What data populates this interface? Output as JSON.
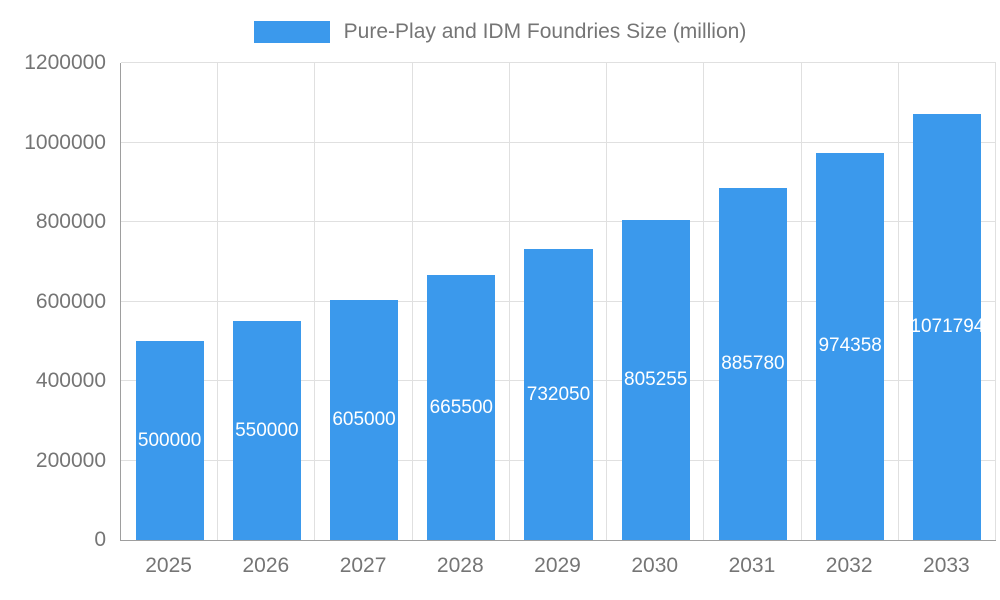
{
  "colors": {
    "bar": "#3B99EC",
    "grid": "#e0e0e0",
    "axis": "#9e9e9e",
    "text": "#757575",
    "bar_label": "#ffffff"
  },
  "legend": {
    "label": "Pure-Play and IDM Foundries Size (million)"
  },
  "chart_data": {
    "type": "bar",
    "title": "Pure-Play and IDM Foundries Size (million)",
    "xlabel": "",
    "ylabel": "",
    "categories": [
      "2025",
      "2026",
      "2027",
      "2028",
      "2029",
      "2030",
      "2031",
      "2032",
      "2033"
    ],
    "values": [
      500000,
      550000,
      605000,
      665500,
      732050,
      805255,
      885780,
      974358,
      1071794
    ],
    "bar_labels": [
      "500000",
      "550000",
      "605000",
      "665500",
      "732050",
      "805255",
      "885780",
      "974358",
      "1071794"
    ],
    "ylim": [
      0,
      1200000
    ],
    "yticks": [
      0,
      200000,
      400000,
      600000,
      800000,
      1000000,
      1200000
    ],
    "grid": true,
    "legend_position": "top",
    "bar_label_position": "center-inside",
    "bar_width_fraction": 0.7
  }
}
